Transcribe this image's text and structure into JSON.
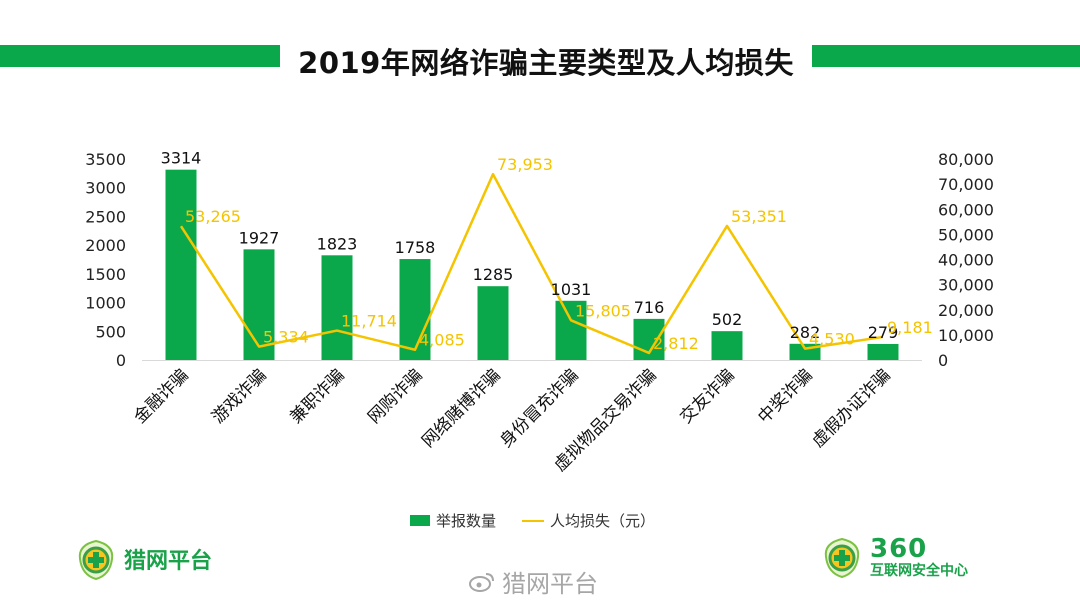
{
  "title": "2019年网络诈骗主要类型及人均损失",
  "colors": {
    "bar": "#0aa84a",
    "line": "#f5c400",
    "brand_green": "#1aa24a"
  },
  "chart_data": {
    "type": "bar+line",
    "categories": [
      "金融诈骗",
      "游戏诈骗",
      "兼职诈骗",
      "网购诈骗",
      "网络赌博诈骗",
      "身份冒充诈骗",
      "虚拟物品交易诈骗",
      "交友诈骗",
      "中奖诈骗",
      "虚假办证诈骗"
    ],
    "series": [
      {
        "name": "举报数量",
        "type": "bar",
        "axis": "left",
        "values": [
          3314,
          1927,
          1823,
          1758,
          1285,
          1031,
          716,
          502,
          282,
          279
        ],
        "labels": [
          "3314",
          "1927",
          "1823",
          "1758",
          "1285",
          "1031",
          "716",
          "502",
          "282",
          "279"
        ]
      },
      {
        "name": "人均损失（元）",
        "type": "line",
        "axis": "right",
        "values": [
          53265,
          5334,
          11714,
          4085,
          73953,
          15805,
          2812,
          53351,
          4530,
          9181
        ],
        "labels": [
          "53,265",
          "5,334",
          "11,714",
          "4,085",
          "73,953",
          "15,805",
          "2,812",
          "53,351",
          "4,530",
          "9,181"
        ]
      }
    ],
    "left_axis": {
      "min": 0,
      "max": 3500,
      "ticks": [
        0,
        500,
        1000,
        1500,
        2000,
        2500,
        3000,
        3500
      ],
      "tick_labels": [
        "0",
        "500",
        "1000",
        "1500",
        "2000",
        "2500",
        "3000",
        "3500"
      ]
    },
    "right_axis": {
      "min": 0,
      "max": 80000,
      "ticks": [
        0,
        10000,
        20000,
        30000,
        40000,
        50000,
        60000,
        70000,
        80000
      ],
      "tick_labels": [
        "0",
        "10,000",
        "20,000",
        "30,000",
        "40,000",
        "50,000",
        "60,000",
        "70,000",
        "80,000"
      ]
    },
    "grid": false,
    "legend_position": "bottom"
  },
  "legend": {
    "bar_label": "举报数量",
    "line_label": "人均损失（元）"
  },
  "logos": {
    "left_name": "猎网平台",
    "right_number": "360",
    "right_sub": "互联网安全中心"
  },
  "watermark": {
    "text": "猎网平台"
  }
}
